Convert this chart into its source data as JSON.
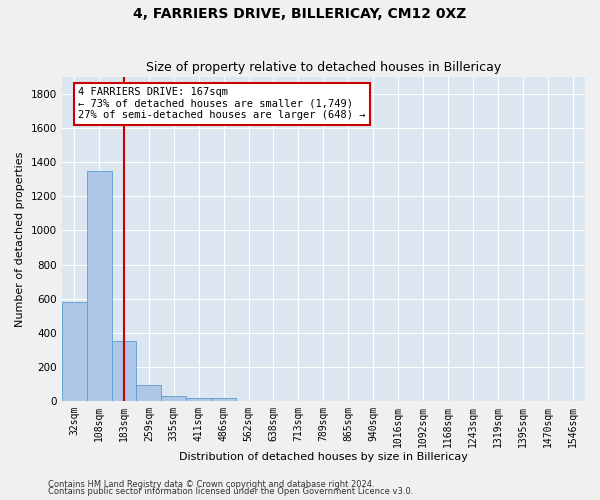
{
  "title": "4, FARRIERS DRIVE, BILLERICAY, CM12 0XZ",
  "subtitle": "Size of property relative to detached houses in Billericay",
  "xlabel": "Distribution of detached houses by size in Billericay",
  "ylabel": "Number of detached properties",
  "bar_labels": [
    "32sqm",
    "108sqm",
    "183sqm",
    "259sqm",
    "335sqm",
    "411sqm",
    "486sqm",
    "562sqm",
    "638sqm",
    "713sqm",
    "789sqm",
    "865sqm",
    "940sqm",
    "1016sqm",
    "1092sqm",
    "1168sqm",
    "1243sqm",
    "1319sqm",
    "1395sqm",
    "1470sqm",
    "1546sqm"
  ],
  "bar_values": [
    580,
    1350,
    350,
    95,
    30,
    15,
    15,
    0,
    0,
    0,
    0,
    0,
    0,
    0,
    0,
    0,
    0,
    0,
    0,
    0,
    0
  ],
  "bar_color": "#aec6e8",
  "bar_edge_color": "#5a9ecf",
  "vline_x": 2,
  "vline_color": "#cc0000",
  "annotation_line1": "4 FARRIERS DRIVE: 167sqm",
  "annotation_line2": "← 73% of detached houses are smaller (1,749)",
  "annotation_line3": "27% of semi-detached houses are larger (648) →",
  "annotation_box_color": "#ffffff",
  "annotation_box_edge": "#cc0000",
  "ylim": [
    0,
    1900
  ],
  "yticks": [
    0,
    200,
    400,
    600,
    800,
    1000,
    1200,
    1400,
    1600,
    1800
  ],
  "background_color": "#dce6f0",
  "grid_color": "#ffffff",
  "footer_line1": "Contains HM Land Registry data © Crown copyright and database right 2024.",
  "footer_line2": "Contains public sector information licensed under the Open Government Licence v3.0.",
  "title_fontsize": 10,
  "subtitle_fontsize": 9,
  "axis_label_fontsize": 8,
  "tick_fontsize": 7,
  "annotation_fontsize": 7.5,
  "footer_fontsize": 6
}
